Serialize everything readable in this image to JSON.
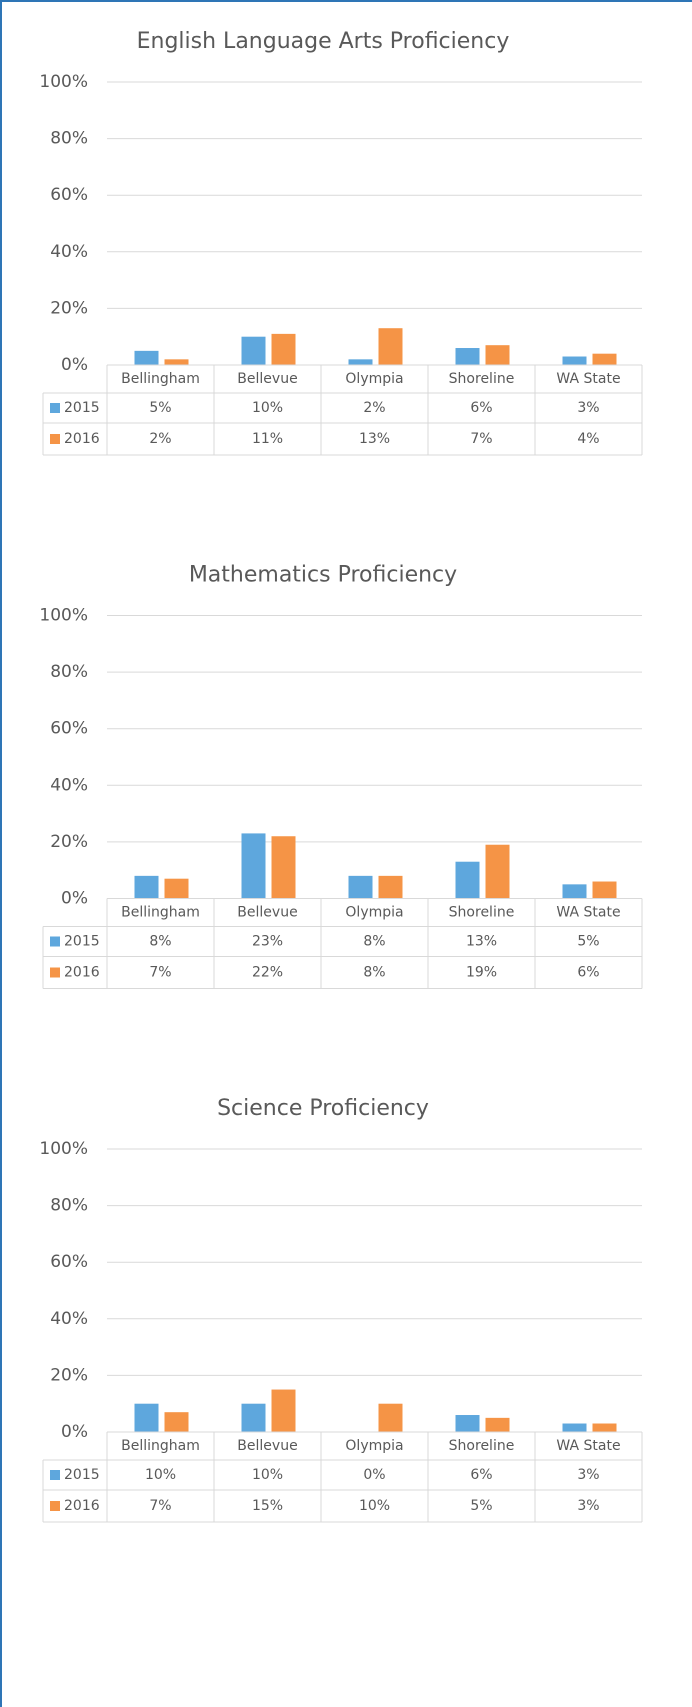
{
  "chart_data": [
    {
      "type": "bar",
      "title": "English Language Arts Proficiency",
      "categories": [
        "Bellingham",
        "Bellevue",
        "Olympia",
        "Shoreline",
        "WA State"
      ],
      "series": [
        {
          "name": "2015",
          "color": "#5ea7dd",
          "values": [
            5,
            10,
            2,
            6,
            3
          ],
          "value_labels": [
            "5%",
            "10%",
            "2%",
            "6%",
            "3%"
          ]
        },
        {
          "name": "2016",
          "color": "#f59446",
          "values": [
            2,
            11,
            13,
            7,
            4
          ],
          "value_labels": [
            "2%",
            "11%",
            "13%",
            "7%",
            "4%"
          ]
        }
      ],
      "ylim": [
        0,
        100
      ],
      "yticks": [
        {
          "value": 0,
          "label": "0%"
        },
        {
          "value": 20,
          "label": "20%"
        },
        {
          "value": 40,
          "label": "40%"
        },
        {
          "value": 60,
          "label": "60%"
        },
        {
          "value": 80,
          "label": "80%"
        },
        {
          "value": 100,
          "label": "100%"
        }
      ],
      "grid": true
    },
    {
      "type": "bar",
      "title": "Mathematics Proficiency",
      "categories": [
        "Bellingham",
        "Bellevue",
        "Olympia",
        "Shoreline",
        "WA State"
      ],
      "series": [
        {
          "name": "2015",
          "color": "#5ea7dd",
          "values": [
            8,
            23,
            8,
            13,
            5
          ],
          "value_labels": [
            "8%",
            "23%",
            "8%",
            "13%",
            "5%"
          ]
        },
        {
          "name": "2016",
          "color": "#f59446",
          "values": [
            7,
            22,
            8,
            19,
            6
          ],
          "value_labels": [
            "7%",
            "22%",
            "8%",
            "19%",
            "6%"
          ]
        }
      ],
      "ylim": [
        0,
        100
      ],
      "yticks": [
        {
          "value": 0,
          "label": "0%"
        },
        {
          "value": 20,
          "label": "20%"
        },
        {
          "value": 40,
          "label": "40%"
        },
        {
          "value": 60,
          "label": "60%"
        },
        {
          "value": 80,
          "label": "80%"
        },
        {
          "value": 100,
          "label": "100%"
        }
      ],
      "grid": true
    },
    {
      "type": "bar",
      "title": "Science Proficiency",
      "categories": [
        "Bellingham",
        "Bellevue",
        "Olympia",
        "Shoreline",
        "WA State"
      ],
      "series": [
        {
          "name": "2015",
          "color": "#5ea7dd",
          "values": [
            10,
            10,
            0,
            6,
            3
          ],
          "value_labels": [
            "10%",
            "10%",
            "0%",
            "6%",
            "3%"
          ]
        },
        {
          "name": "2016",
          "color": "#f59446",
          "values": [
            7,
            15,
            10,
            5,
            3
          ],
          "value_labels": [
            "7%",
            "15%",
            "10%",
            "5%",
            "3%"
          ]
        }
      ],
      "ylim": [
        0,
        100
      ],
      "yticks": [
        {
          "value": 0,
          "label": "0%"
        },
        {
          "value": 20,
          "label": "20%"
        },
        {
          "value": 40,
          "label": "40%"
        },
        {
          "value": 60,
          "label": "60%"
        },
        {
          "value": 80,
          "label": "80%"
        },
        {
          "value": 100,
          "label": "100%"
        }
      ],
      "grid": true
    }
  ]
}
